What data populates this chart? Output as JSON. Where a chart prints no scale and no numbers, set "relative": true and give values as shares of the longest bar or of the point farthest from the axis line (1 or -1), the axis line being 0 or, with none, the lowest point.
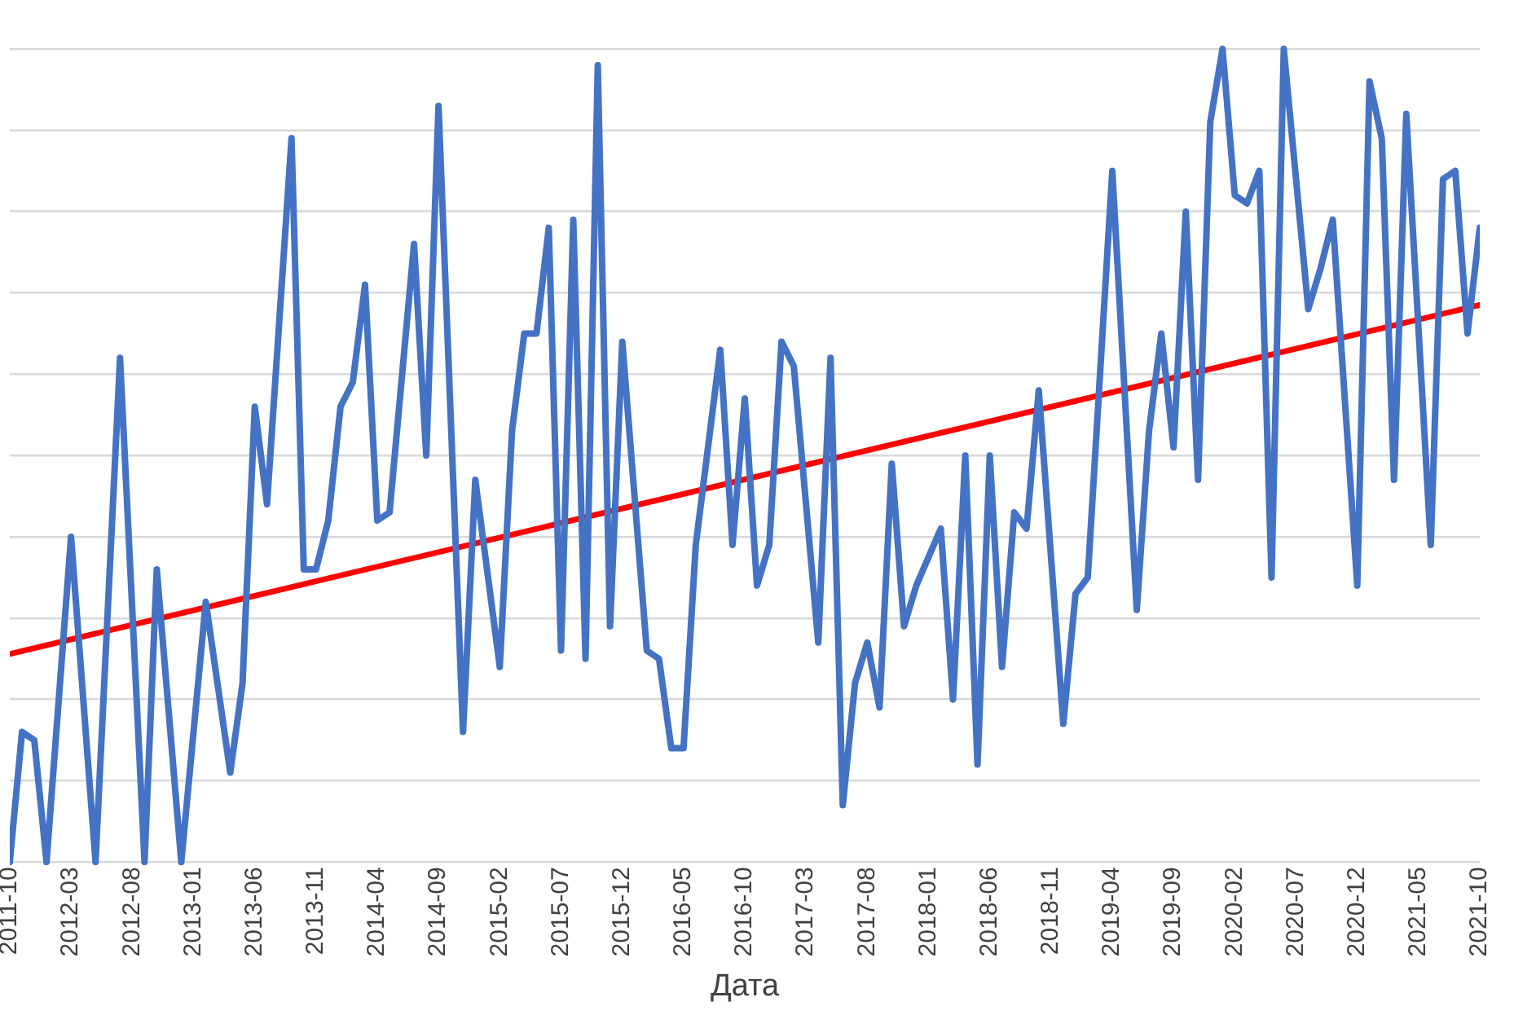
{
  "chart_data": {
    "type": "line",
    "relative": true,
    "xlabel": "Дата",
    "grid": "y",
    "legend": false,
    "marker": "none",
    "line_style": "solid",
    "xlim": [
      "2011-10",
      "2021-10"
    ],
    "xticks": [
      "2011-10",
      "2012-03",
      "2012-08",
      "2013-01",
      "2013-06",
      "2013-11",
      "2014-04",
      "2014-09",
      "2015-02",
      "2015-07",
      "2015-12",
      "2016-05",
      "2016-10",
      "2017-03",
      "2017-08",
      "2018-01",
      "2018-06",
      "2018-11",
      "2019-04",
      "2019-09",
      "2020-02",
      "2020-07",
      "2020-12",
      "2021-05",
      "2021-10"
    ],
    "series": [
      {
        "color": "#4472c4",
        "x": [
          "2011-10",
          "2011-11",
          "2011-12",
          "2012-01",
          "2012-03",
          "2012-05",
          "2012-07",
          "2012-09",
          "2012-10",
          "2012-12",
          "2013-02",
          "2013-04",
          "2013-05",
          "2013-06",
          "2013-07",
          "2013-09",
          "2013-10",
          "2013-11",
          "2013-12",
          "2014-01",
          "2014-02",
          "2014-03",
          "2014-04",
          "2014-05",
          "2014-07",
          "2014-08",
          "2014-09",
          "2014-11",
          "2014-12",
          "2015-02",
          "2015-03",
          "2015-04",
          "2015-05",
          "2015-06",
          "2015-07",
          "2015-08",
          "2015-09",
          "2015-10",
          "2015-11",
          "2015-12",
          "2016-02",
          "2016-03",
          "2016-04",
          "2016-05",
          "2016-06",
          "2016-08",
          "2016-09",
          "2016-10",
          "2016-11",
          "2016-12",
          "2017-01",
          "2017-02",
          "2017-04",
          "2017-05",
          "2017-06",
          "2017-07",
          "2017-08",
          "2017-09",
          "2017-10",
          "2017-11",
          "2017-12",
          "2018-02",
          "2018-03",
          "2018-04",
          "2018-05",
          "2018-06",
          "2018-07",
          "2018-08",
          "2018-09",
          "2018-10",
          "2018-12",
          "2019-01",
          "2019-02",
          "2019-04",
          "2019-06",
          "2019-07",
          "2019-08",
          "2019-09",
          "2019-10",
          "2019-11",
          "2019-12",
          "2020-01",
          "2020-02",
          "2020-03",
          "2020-04",
          "2020-05",
          "2020-06",
          "2020-08",
          "2020-09",
          "2020-10",
          "2020-12",
          "2021-01",
          "2021-02",
          "2021-03",
          "2021-04",
          "2021-06",
          "2021-07",
          "2021-08",
          "2021-09",
          "2021-10"
        ],
        "values": [
          0,
          0.16,
          0.15,
          0,
          0.4,
          0,
          0.62,
          0,
          0.36,
          0,
          0.32,
          0.11,
          0.22,
          0.56,
          0.44,
          0.89,
          0.36,
          0.36,
          0.42,
          0.56,
          0.59,
          0.71,
          0.42,
          0.43,
          0.76,
          0.5,
          0.93,
          0.16,
          0.47,
          0.24,
          0.53,
          0.65,
          0.65,
          0.78,
          0.26,
          0.79,
          0.25,
          0.98,
          0.29,
          0.64,
          0.26,
          0.25,
          0.14,
          0.14,
          0.39,
          0.63,
          0.39,
          0.57,
          0.34,
          0.39,
          0.64,
          0.61,
          0.27,
          0.62,
          0.07,
          0.22,
          0.27,
          0.19,
          0.49,
          0.29,
          0.34,
          0.41,
          0.2,
          0.5,
          0.12,
          0.5,
          0.24,
          0.43,
          0.41,
          0.58,
          0.17,
          0.33,
          0.35,
          0.85,
          0.31,
          0.53,
          0.65,
          0.51,
          0.8,
          0.47,
          0.91,
          1,
          0.82,
          0.81,
          0.85,
          0.35,
          1,
          0.68,
          0.73,
          0.79,
          0.34,
          0.96,
          0.89,
          0.47,
          0.92,
          0.39,
          0.84,
          0.85,
          0.65,
          0.78
        ]
      },
      {
        "type": "line",
        "color": "#ff0000",
        "x": [
          "2011-10",
          "2021-10"
        ],
        "values": [
          0.256,
          0.685
        ]
      }
    ]
  }
}
